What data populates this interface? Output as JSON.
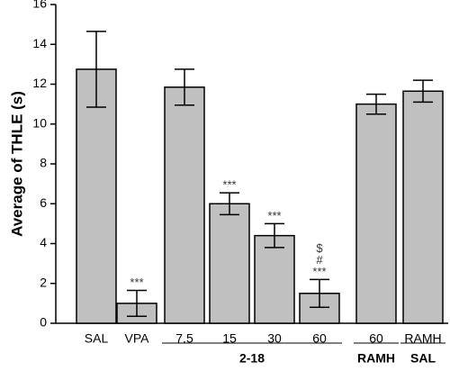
{
  "chart_data": {
    "type": "bar",
    "ylabel": "Average of THLE (s)",
    "categories": [
      "SAL",
      "VPA",
      "7.5",
      "15",
      "30",
      "60",
      "60",
      "RAMH"
    ],
    "values": [
      12.75,
      1.0,
      11.85,
      6.0,
      4.4,
      1.5,
      11.0,
      11.65
    ],
    "errors": [
      1.9,
      0.65,
      0.9,
      0.55,
      0.6,
      0.7,
      0.5,
      0.55
    ],
    "annotations": [
      null,
      [
        "***"
      ],
      null,
      [
        "***"
      ],
      [
        "***"
      ],
      [
        "$",
        "#",
        "***"
      ],
      null,
      null
    ],
    "groups": [
      {
        "label": "2-18",
        "span": [
          2,
          5
        ]
      },
      {
        "label": "RAMH",
        "span": [
          6,
          6
        ]
      },
      {
        "label": "SAL",
        "span": [
          7,
          7
        ]
      }
    ],
    "color": "#c0c0c0",
    "ylim": [
      0,
      16
    ],
    "yticks": [
      0,
      2,
      4,
      6,
      8,
      10,
      12,
      14,
      16
    ]
  }
}
